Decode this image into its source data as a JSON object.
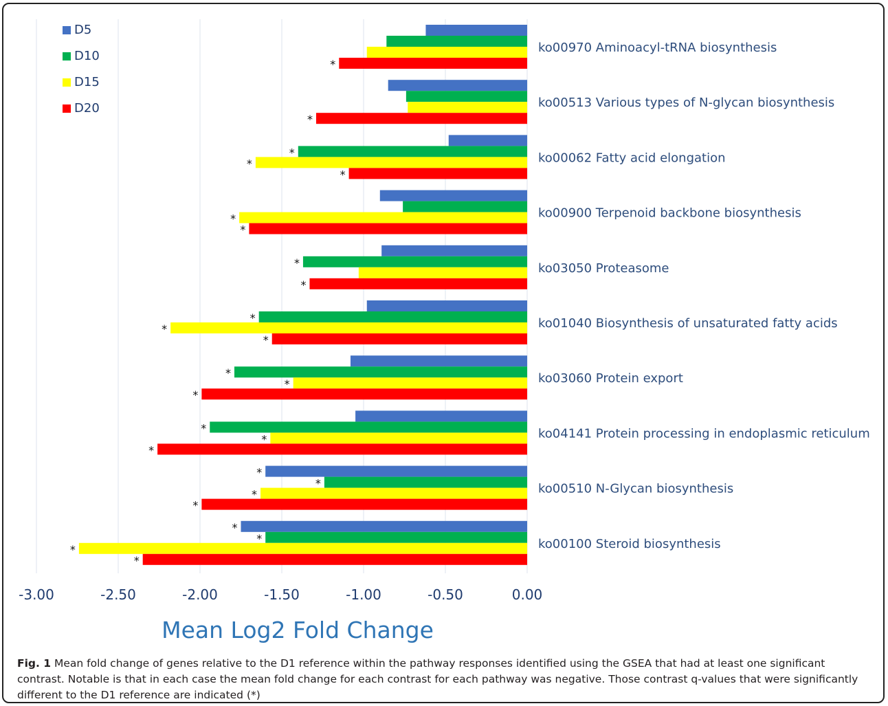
{
  "chart_data": {
    "type": "bar",
    "orientation": "horizontal",
    "xlabel": "Mean Log2 Fold Change",
    "ylabel": "",
    "xlim": [
      -3.0,
      0.0
    ],
    "xticks": [
      "-3.00",
      "-2.50",
      "-2.00",
      "-1.50",
      "-1.00",
      "-0.50",
      "0.00"
    ],
    "tick_values": [
      -3.0,
      -2.5,
      -2.0,
      -1.5,
      -1.0,
      -0.5,
      0.0
    ],
    "grid": "vertical",
    "legend_position": "top-left",
    "colors": {
      "D5": "#4472c4",
      "D10": "#00b050",
      "D15": "#ffff00",
      "D20": "#ff0000",
      "axis_text": "#1f3b6e",
      "label_text": "#2e4d7c",
      "xlabel_text": "#2f75b5"
    },
    "categories": [
      "ko00970 Aminoacyl-tRNA biosynthesis",
      "ko00513 Various types of N-glycan biosynthesis",
      "ko00062 Fatty acid elongation",
      "ko00900 Terpenoid backbone biosynthesis",
      "ko03050 Proteasome",
      "ko01040 Biosynthesis of unsaturated fatty acids",
      "ko03060 Protein export",
      "ko04141 Protein processing in endoplasmic reticulum",
      "ko00510 N-Glycan biosynthesis",
      "ko00100 Steroid biosynthesis"
    ],
    "series": [
      {
        "name": "D5",
        "values": [
          -0.62,
          -0.85,
          -0.48,
          -0.9,
          -0.89,
          -0.98,
          -1.08,
          -1.05,
          -1.6,
          -1.75
        ],
        "significant": [
          false,
          false,
          false,
          false,
          false,
          false,
          false,
          false,
          true,
          true
        ]
      },
      {
        "name": "D10",
        "values": [
          -0.86,
          -0.74,
          -1.4,
          -0.76,
          -1.37,
          -1.64,
          -1.79,
          -1.94,
          -1.24,
          -1.6
        ],
        "significant": [
          false,
          false,
          true,
          false,
          true,
          true,
          true,
          true,
          true,
          true
        ]
      },
      {
        "name": "D15",
        "values": [
          -0.98,
          -0.73,
          -1.66,
          -1.76,
          -1.03,
          -2.18,
          -1.43,
          -1.57,
          -1.63,
          -2.74
        ],
        "significant": [
          false,
          false,
          true,
          true,
          false,
          true,
          true,
          true,
          true,
          true
        ]
      },
      {
        "name": "D20",
        "values": [
          -1.15,
          -1.29,
          -1.09,
          -1.7,
          -1.33,
          -1.56,
          -1.99,
          -2.26,
          -1.99,
          -2.35
        ],
        "significant": [
          true,
          true,
          true,
          true,
          true,
          true,
          true,
          true,
          true,
          true
        ]
      }
    ],
    "significance_marker": "*"
  },
  "caption": {
    "label": "Fig. 1",
    "text": " Mean fold change of genes relative to the D1 reference within the pathway responses identified using the GSEA that had at least one significant contrast. Notable is that in each case the mean fold change for each contrast for each pathway was negative. Those contrast q-values that were significantly different to the D1 reference are indicated (*)"
  }
}
